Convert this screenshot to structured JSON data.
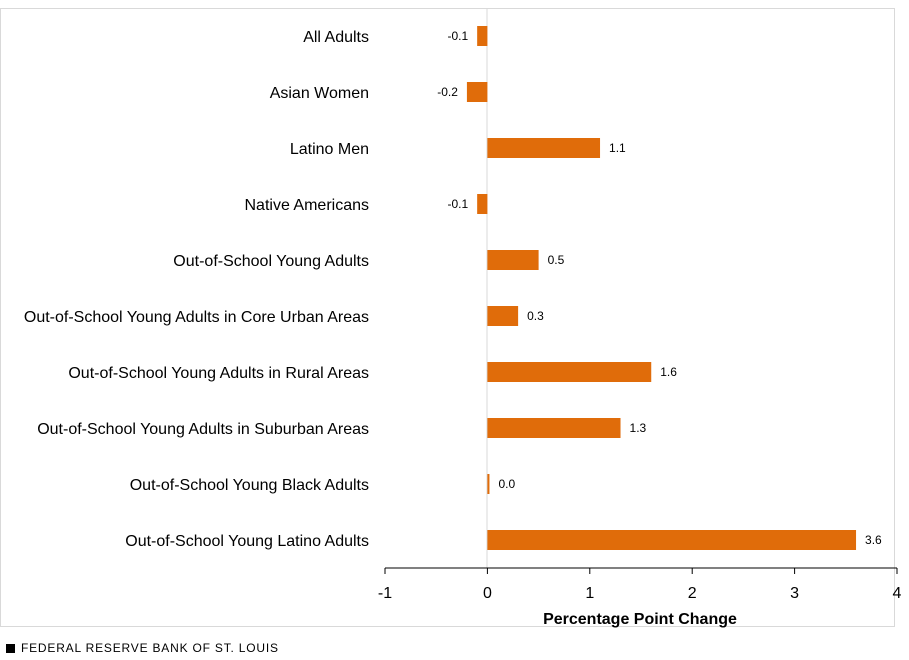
{
  "chart_data": {
    "type": "bar",
    "orientation": "horizontal",
    "categories": [
      "All Adults",
      "Asian Women",
      "Latino Men",
      "Native Americans",
      "Out-of-School Young Adults",
      "Out-of-School Young Adults in Core Urban Areas",
      "Out-of-School Young Adults in Rural Areas",
      "Out-of-School Young Adults in Suburban Areas",
      "Out-of-School Young Black Adults",
      "Out-of-School Young Latino Adults"
    ],
    "values": [
      -0.1,
      -0.2,
      1.1,
      -0.1,
      0.5,
      0.3,
      1.6,
      1.3,
      0.02,
      3.6
    ],
    "data_labels": [
      "-0.1",
      "-0.2",
      "1.1",
      "-0.1",
      "0.5",
      "0.3",
      "1.6",
      "1.3",
      "0.0",
      "3.6"
    ],
    "xlabel": "Percentage Point Change",
    "xlim": [
      -1,
      4
    ],
    "xticks": [
      "-1",
      "0",
      "1",
      "2",
      "3",
      "4"
    ],
    "grid": false,
    "bar_color": "#E06C0A",
    "legend": "none"
  },
  "footer": {
    "source": "FEDERAL RESERVE BANK OF ST. LOUIS"
  }
}
